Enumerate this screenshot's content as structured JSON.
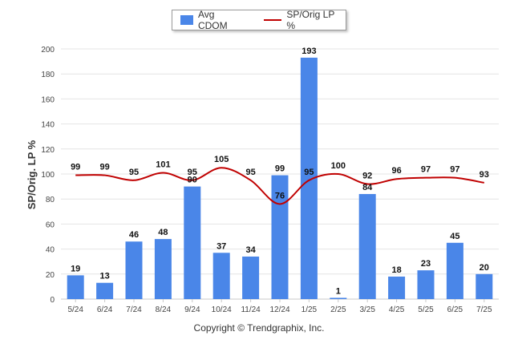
{
  "chart_data": {
    "type": "bar",
    "categories": [
      "5/24",
      "6/24",
      "7/24",
      "8/24",
      "9/24",
      "10/24",
      "11/24",
      "12/24",
      "1/25",
      "2/25",
      "3/25",
      "4/25",
      "5/25",
      "6/25",
      "7/25"
    ],
    "series": [
      {
        "name": "Avg CDOM",
        "type": "bar",
        "color": "#4a86e8",
        "values": [
          19,
          13,
          46,
          48,
          90,
          37,
          34,
          99,
          193,
          1,
          84,
          18,
          23,
          45,
          20
        ]
      },
      {
        "name": "SP/Orig LP %",
        "type": "line",
        "color": "#c00000",
        "values": [
          99,
          99,
          95,
          101,
          95,
          105,
          95,
          76,
          95,
          100,
          92,
          96,
          97,
          97,
          93
        ]
      }
    ],
    "bar_labels": [
      "19",
      "13",
      "46",
      "48",
      "90",
      "37",
      "34",
      "99",
      "193",
      "1",
      "84",
      "18",
      "23",
      "45",
      "20"
    ],
    "line_labels": [
      "99",
      "99",
      "95",
      "101",
      "95",
      "105",
      "95",
      "76",
      "95",
      "100",
      "92",
      "96",
      "97",
      "97",
      "93"
    ],
    "ylabel": "SP/Orig. LP %",
    "ylim": [
      0,
      200
    ],
    "yticks": [
      0,
      20,
      40,
      60,
      80,
      100,
      120,
      140,
      160,
      180,
      200
    ],
    "grid": true,
    "legend_position": "top-center"
  },
  "footer": {
    "copyright": "Copyright © Trendgraphix, Inc."
  }
}
